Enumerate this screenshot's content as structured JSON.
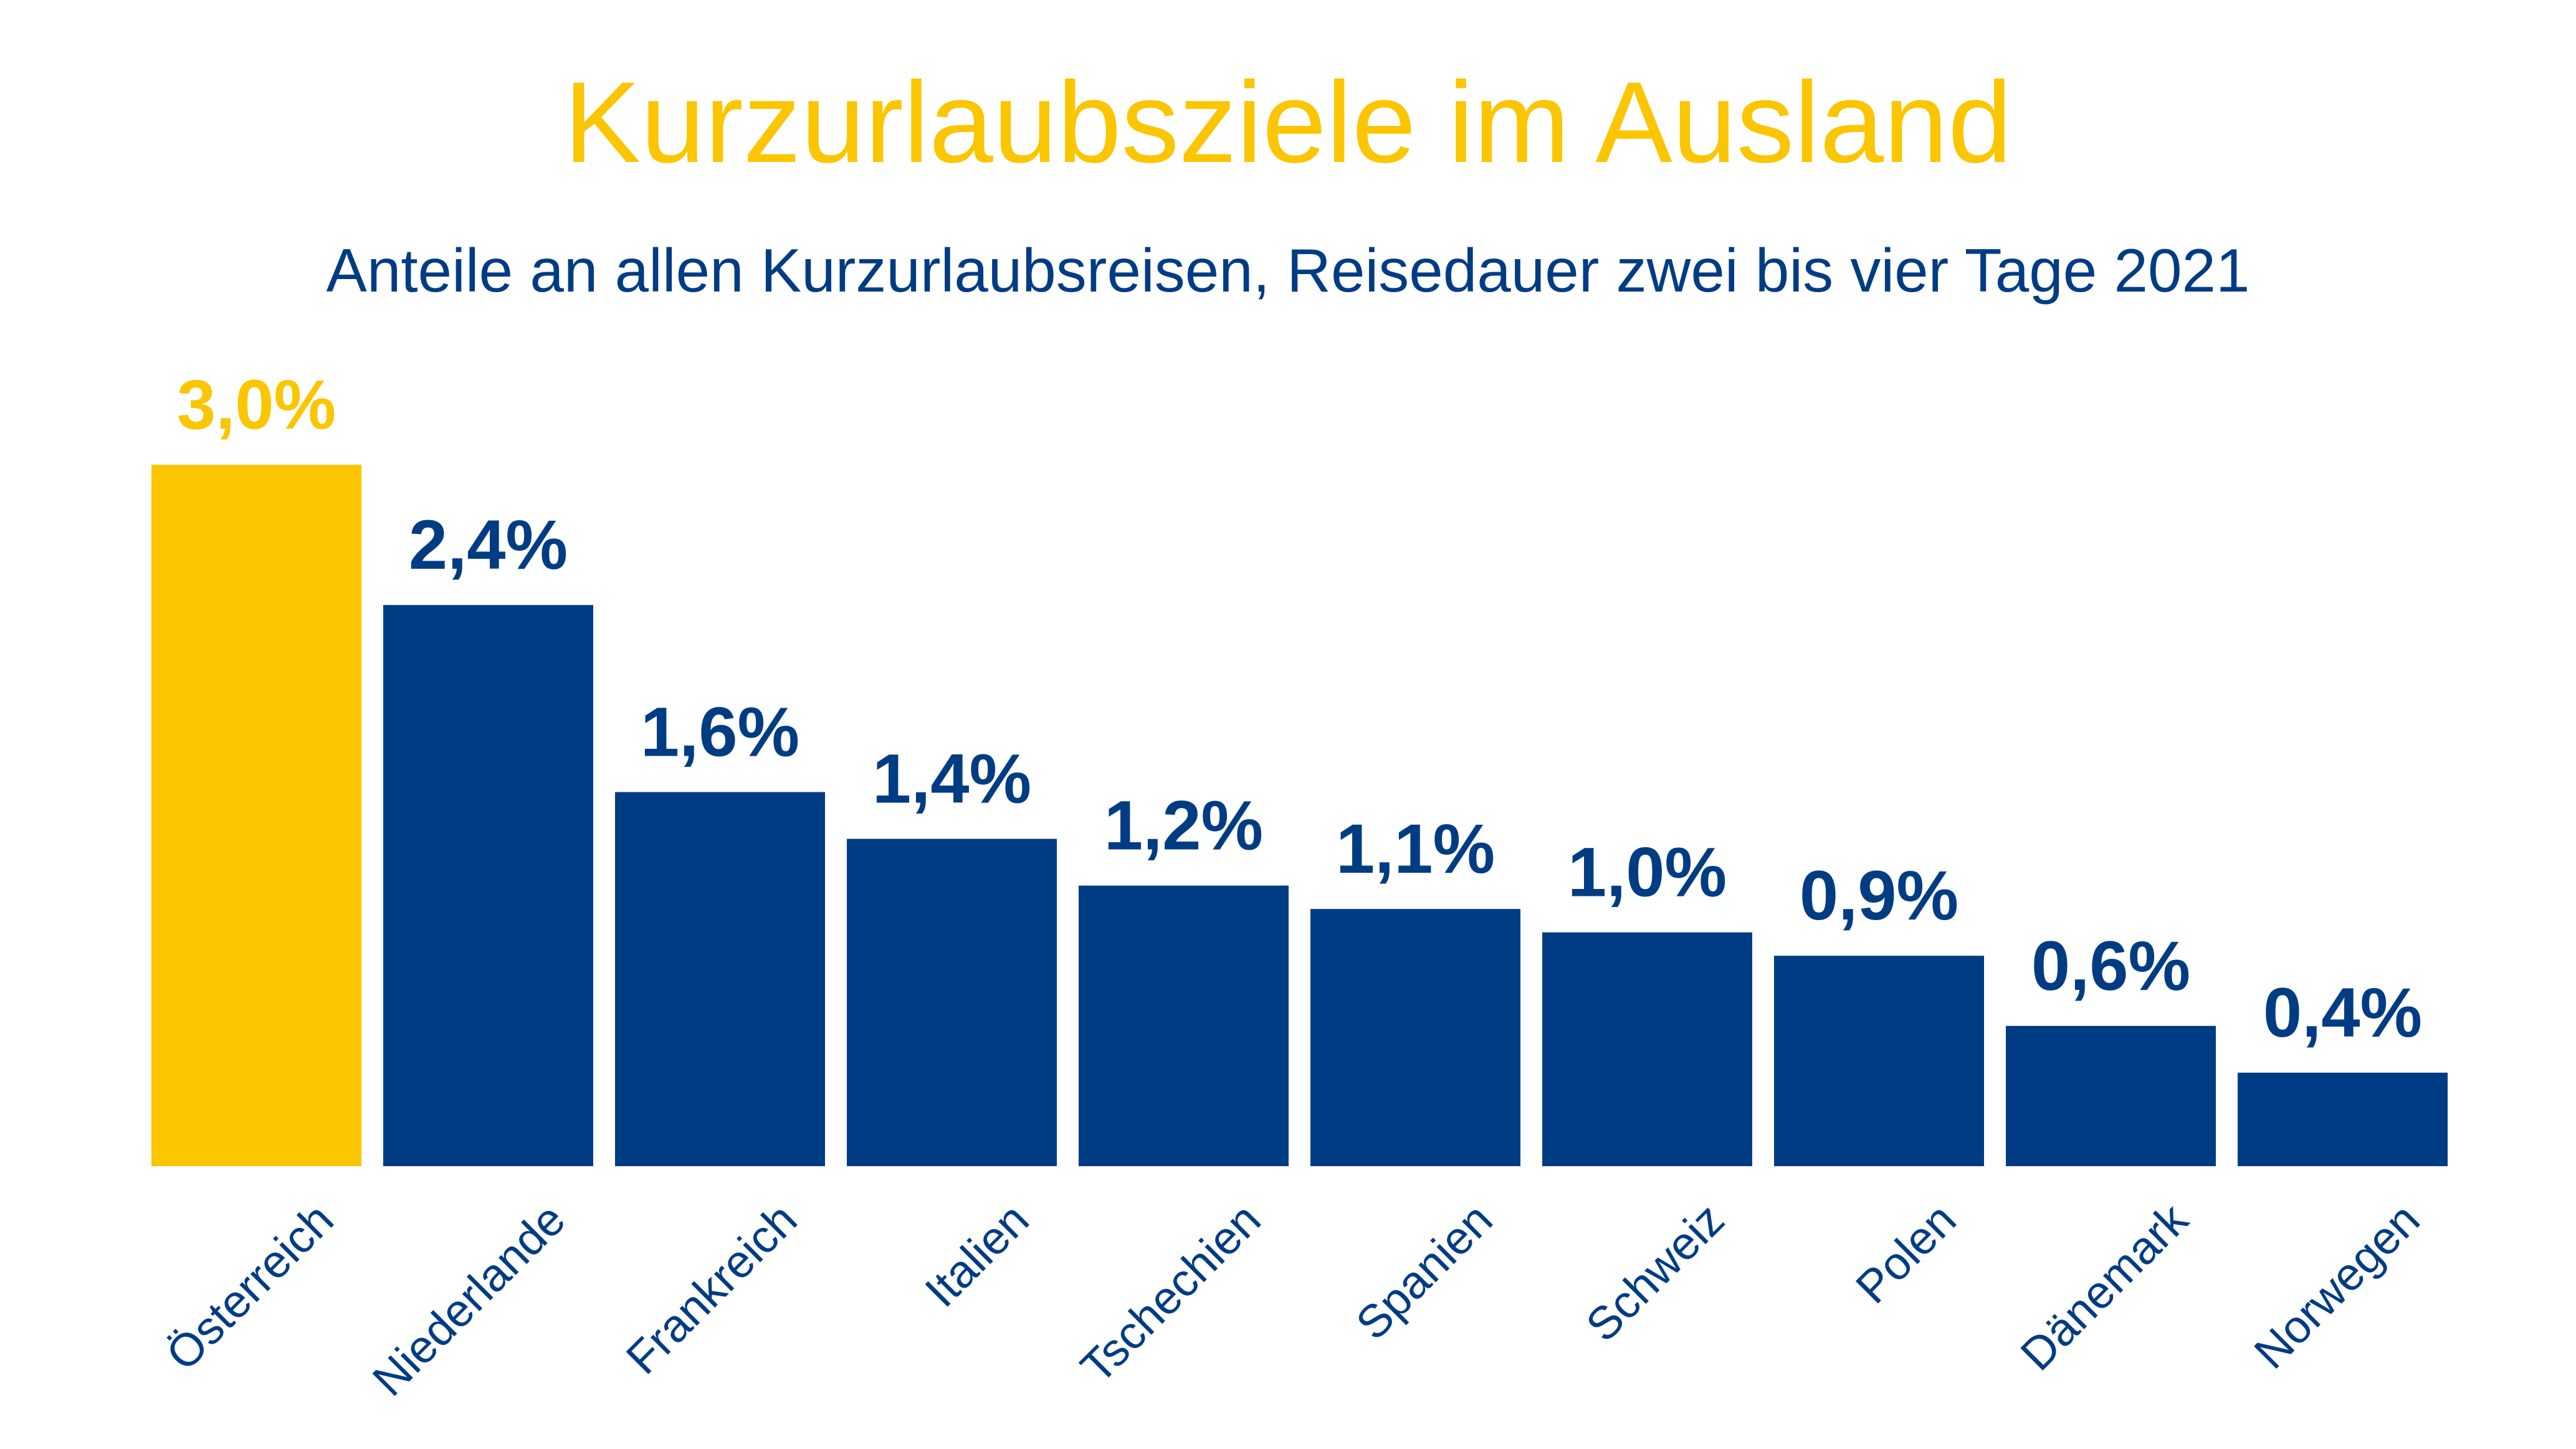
{
  "chart_data": {
    "type": "bar",
    "title": "Kurzurlaubsziele im Ausland",
    "subtitle": "Anteile an allen Kurzurlaubsreisen, Reisedauer zwei bis vier Tage 2021",
    "categories": [
      "Österreich",
      "Niederlande",
      "Frankreich",
      "Italien",
      "Tschechien",
      "Spanien",
      "Schweiz",
      "Polen",
      "Dänemark",
      "Norwegen"
    ],
    "values": [
      3.0,
      2.4,
      1.6,
      1.4,
      1.2,
      1.1,
      1.0,
      0.9,
      0.6,
      0.4
    ],
    "data_labels": [
      "3,0%",
      "2,4%",
      "1,6%",
      "1,4%",
      "1,2%",
      "1,1%",
      "1,0%",
      "0,9%",
      "0,6%",
      "0,4%"
    ],
    "unit": "%",
    "highlight_index": 0,
    "colors": {
      "highlight": "#FBC500",
      "bar": "#003C83",
      "title": "#FBC500",
      "text": "#003C83"
    },
    "ylim": [
      0,
      3.0
    ],
    "xlabel": "",
    "ylabel": "",
    "grid": false,
    "legend": "none"
  }
}
